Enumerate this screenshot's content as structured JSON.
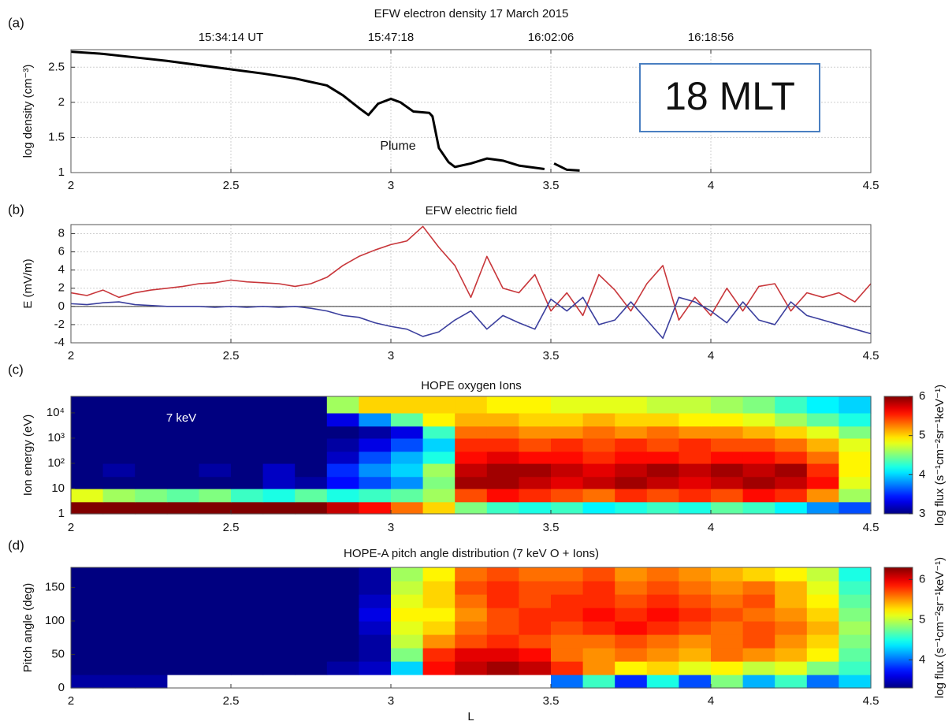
{
  "chart_data": [
    {
      "type": "line",
      "title": "EFW electron density 17 March 2015",
      "panel_label": "(a)",
      "ylabel": "log density (cm⁻³)",
      "x": [
        2.0,
        2.1,
        2.2,
        2.3,
        2.4,
        2.5,
        2.6,
        2.7,
        2.8,
        2.85,
        2.9,
        2.93,
        2.96,
        3.0,
        3.03,
        3.07,
        3.12,
        3.13,
        3.15,
        3.18,
        3.2,
        3.25,
        3.3,
        3.35,
        3.4,
        3.48,
        3.49,
        3.51,
        3.55,
        3.59
      ],
      "series": [
        {
          "color": "#000000",
          "values": [
            2.72,
            2.69,
            2.64,
            2.59,
            2.53,
            2.47,
            2.41,
            2.34,
            2.24,
            2.1,
            1.92,
            1.82,
            1.98,
            2.05,
            2.0,
            1.87,
            1.85,
            1.8,
            1.35,
            1.15,
            1.08,
            1.13,
            1.2,
            1.17,
            1.1,
            1.05,
            null,
            1.13,
            1.04,
            1.03
          ]
        }
      ],
      "xlim": [
        2,
        4.5
      ],
      "xticks": [
        2,
        2.5,
        3,
        3.5,
        4,
        4.5
      ],
      "x2ticks": [
        {
          "value": 2.5,
          "label": "15:34:14 UT"
        },
        {
          "value": 3,
          "label": "15:47:18"
        },
        {
          "value": 3.5,
          "label": "16:02:06"
        },
        {
          "value": 4,
          "label": "16:18:56"
        }
      ],
      "ylim": [
        1,
        2.75
      ],
      "yticks": [
        1,
        1.5,
        2,
        2.5
      ],
      "grid": true,
      "annotations": [
        "Plume",
        "18 MLT"
      ]
    },
    {
      "type": "line",
      "title": "EFW electric field",
      "panel_label": "(b)",
      "ylabel": "E (mV/m)",
      "x": [
        2.0,
        2.05,
        2.1,
        2.15,
        2.2,
        2.25,
        2.3,
        2.35,
        2.4,
        2.45,
        2.5,
        2.55,
        2.6,
        2.65,
        2.7,
        2.75,
        2.8,
        2.85,
        2.9,
        2.95,
        3.0,
        3.05,
        3.1,
        3.15,
        3.2,
        3.25,
        3.3,
        3.35,
        3.4,
        3.45,
        3.5,
        3.55,
        3.6,
        3.65,
        3.7,
        3.75,
        3.8,
        3.85,
        3.9,
        3.95,
        4.0,
        4.05,
        4.1,
        4.15,
        4.2,
        4.25,
        4.3,
        4.35,
        4.4,
        4.45,
        4.5
      ],
      "series": [
        {
          "color": "#c8363a",
          "values": [
            1.5,
            1.2,
            1.8,
            1.0,
            1.5,
            1.8,
            2.0,
            2.2,
            2.5,
            2.6,
            2.9,
            2.7,
            2.6,
            2.5,
            2.2,
            2.5,
            3.2,
            4.5,
            5.5,
            6.2,
            6.8,
            7.2,
            8.8,
            6.5,
            4.5,
            1.0,
            5.5,
            2.0,
            1.5,
            3.5,
            -0.5,
            1.5,
            -1.0,
            3.5,
            1.8,
            -0.5,
            2.5,
            4.5,
            -1.5,
            1.0,
            -1.0,
            2.0,
            -0.5,
            2.2,
            2.5,
            -0.5,
            1.5,
            1.0,
            1.5,
            0.5,
            2.5
          ]
        },
        {
          "color": "#3b3f9e",
          "values": [
            0.3,
            0.2,
            0.4,
            0.5,
            0.2,
            0.1,
            0.0,
            0.0,
            0.0,
            -0.1,
            0.0,
            -0.1,
            0.0,
            -0.1,
            0.0,
            -0.2,
            -0.5,
            -1.0,
            -1.2,
            -1.8,
            -2.2,
            -2.5,
            -3.3,
            -2.8,
            -1.5,
            -0.5,
            -2.5,
            -1.0,
            -1.8,
            -2.5,
            0.8,
            -0.5,
            1.0,
            -2.0,
            -1.5,
            0.5,
            -1.5,
            -3.5,
            1.0,
            0.5,
            -0.5,
            -1.8,
            0.5,
            -1.5,
            -2.0,
            0.5,
            -1.0,
            -1.5,
            -2.0,
            -2.5,
            -3.0
          ]
        }
      ],
      "xlim": [
        2,
        4.5
      ],
      "xticks": [
        2,
        2.5,
        3,
        3.5,
        4,
        4.5
      ],
      "ylim": [
        -4,
        9
      ],
      "yticks": [
        -4,
        -2,
        0,
        2,
        4,
        6,
        8
      ],
      "grid": true
    },
    {
      "type": "heatmap",
      "title": "HOPE oxygen Ions",
      "panel_label": "(c)",
      "ylabel": "Ion energy (eV)",
      "colorbar_label": "log flux (s⁻¹cm⁻²sr⁻¹keV⁻¹)",
      "colormap": "jet",
      "yscale": "log",
      "x_edges": [
        2.0,
        2.1,
        2.2,
        2.3,
        2.4,
        2.5,
        2.6,
        2.7,
        2.8,
        2.9,
        3.0,
        3.1,
        3.2,
        3.3,
        3.4,
        3.5,
        3.6,
        3.7,
        3.8,
        3.9,
        4.0,
        4.1,
        4.2,
        4.3,
        4.4,
        4.5
      ],
      "y_edges": [
        1,
        3,
        10,
        30,
        100,
        300,
        1000,
        3000,
        10000,
        45000
      ],
      "z": [
        [
          6,
          6,
          6,
          6,
          6,
          6,
          6,
          6,
          5.8,
          5.6,
          5.3,
          5,
          4.5,
          4.3,
          4.2,
          4.3,
          4.1,
          4.2,
          4.3,
          4.2,
          4.4,
          4.3,
          4.1,
          3.8,
          3.6
        ],
        [
          4.8,
          4.6,
          4.5,
          4.4,
          4.5,
          4.3,
          4.2,
          4.4,
          4.2,
          4.3,
          4.4,
          4.6,
          5.4,
          5.6,
          5.5,
          5.4,
          5.3,
          5.5,
          5.4,
          5.5,
          5.4,
          5.6,
          5.5,
          5.2,
          4.6
        ],
        [
          3,
          3,
          3,
          3,
          3,
          3,
          3.2,
          3.1,
          3.4,
          3.6,
          3.8,
          4.5,
          5.9,
          5.9,
          5.8,
          5.7,
          5.8,
          5.9,
          5.8,
          5.7,
          5.8,
          5.9,
          5.8,
          5.6,
          4.8
        ],
        [
          3,
          3.1,
          3,
          3,
          3.1,
          3,
          3.2,
          3,
          3.5,
          3.8,
          4,
          4.6,
          5.8,
          5.9,
          5.9,
          5.8,
          5.7,
          5.8,
          5.9,
          5.8,
          5.9,
          5.8,
          5.9,
          5.5,
          4.9
        ],
        [
          3,
          3,
          3,
          3,
          3,
          3,
          3,
          3,
          3.2,
          3.6,
          3.9,
          4.2,
          5.6,
          5.7,
          5.6,
          5.6,
          5.5,
          5.6,
          5.6,
          5.5,
          5.6,
          5.6,
          5.5,
          5.3,
          4.9
        ],
        [
          3,
          3,
          3,
          3,
          3,
          3,
          3,
          3,
          3.1,
          3.3,
          3.6,
          4,
          5.5,
          5.5,
          5.4,
          5.5,
          5.4,
          5.5,
          5.4,
          5.5,
          5.4,
          5.4,
          5.3,
          5.1,
          4.8
        ],
        [
          3,
          3,
          3,
          3,
          3,
          3,
          3,
          3,
          3,
          3.1,
          3.3,
          4.3,
          5.3,
          5.3,
          5.2,
          5.2,
          5.3,
          5.2,
          5.3,
          5.2,
          5.2,
          5.1,
          5,
          4.8,
          4.5
        ],
        [
          3,
          3,
          3,
          3,
          3,
          3,
          3,
          3,
          3.3,
          3.8,
          4.4,
          4.9,
          5.1,
          5.1,
          5.0,
          5.0,
          5.1,
          5.0,
          5.0,
          4.9,
          4.9,
          4.8,
          4.6,
          4.4,
          4.2
        ],
        [
          3,
          3,
          3,
          3,
          3,
          3,
          3,
          3,
          4.6,
          5.0,
          5.0,
          5.0,
          5.0,
          4.9,
          4.9,
          4.8,
          4.8,
          4.8,
          4.7,
          4.7,
          4.6,
          4.5,
          4.3,
          4.1,
          4.0
        ]
      ],
      "xlim": [
        2,
        4.5
      ],
      "xticks": [
        2,
        2.5,
        3,
        3.5,
        4,
        4.5
      ],
      "ylim": [
        1,
        45000
      ],
      "yticks": [
        1,
        10,
        {
          "value": 100,
          "label": "10²"
        },
        {
          "value": 1000,
          "label": "10³"
        },
        {
          "value": 10000,
          "label": "10⁴"
        }
      ],
      "clim": [
        3,
        6
      ],
      "cticks": [
        3,
        4,
        5,
        6
      ],
      "grid": false,
      "annotations": [
        "7 keV"
      ]
    },
    {
      "type": "heatmap",
      "title": "HOPE-A pitch angle distribution (7 keV O + Ions)",
      "panel_label": "(d)",
      "ylabel": "Pitch angle (deg)",
      "xlabel": "L",
      "colorbar_label": "log flux (s⁻¹cm⁻²sr⁻¹keV⁻¹)",
      "colormap": "jet",
      "x_edges": [
        2.0,
        2.1,
        2.2,
        2.3,
        2.4,
        2.5,
        2.6,
        2.7,
        2.8,
        2.9,
        3.0,
        3.1,
        3.2,
        3.3,
        3.4,
        3.5,
        3.6,
        3.7,
        3.8,
        3.9,
        4.0,
        4.1,
        4.2,
        4.3,
        4.4,
        4.5
      ],
      "y_edges": [
        0,
        20,
        40,
        60,
        80,
        100,
        120,
        140,
        160,
        180
      ],
      "z": [
        [
          3.4,
          3.4,
          3.4,
          null,
          null,
          null,
          null,
          null,
          null,
          null,
          null,
          null,
          null,
          null,
          null,
          4.0,
          4.6,
          3.8,
          4.5,
          3.9,
          4.8,
          4.2,
          4.6,
          4.0,
          4.3
        ],
        [
          3.3,
          3.3,
          3.3,
          3.3,
          3.3,
          3.3,
          3.3,
          3.3,
          3.4,
          3.5,
          4.3,
          5.9,
          6.1,
          6.2,
          6.1,
          5.8,
          5.5,
          5.2,
          5.3,
          5.1,
          5.2,
          5.0,
          5.1,
          4.8,
          4.6
        ],
        [
          3.3,
          3.3,
          3.3,
          3.3,
          3.3,
          3.3,
          3.3,
          3.3,
          3.3,
          3.4,
          4.8,
          5.8,
          6.0,
          6.0,
          5.9,
          5.6,
          5.5,
          5.6,
          5.5,
          5.4,
          5.6,
          5.5,
          5.4,
          5.2,
          4.7
        ],
        [
          3.3,
          3.3,
          3.3,
          3.3,
          3.3,
          3.3,
          3.3,
          3.3,
          3.3,
          3.4,
          5.0,
          5.5,
          5.7,
          5.8,
          5.7,
          5.6,
          5.6,
          5.7,
          5.6,
          5.5,
          5.6,
          5.7,
          5.5,
          5.3,
          4.8
        ],
        [
          3.3,
          3.3,
          3.3,
          3.3,
          3.3,
          3.3,
          3.3,
          3.3,
          3.3,
          3.5,
          5.1,
          5.3,
          5.6,
          5.7,
          5.8,
          5.7,
          5.8,
          5.9,
          5.8,
          5.7,
          5.6,
          5.7,
          5.6,
          5.4,
          4.9
        ],
        [
          3.3,
          3.3,
          3.3,
          3.3,
          3.3,
          3.3,
          3.3,
          3.3,
          3.3,
          3.6,
          5.2,
          5.2,
          5.5,
          5.7,
          5.8,
          5.8,
          5.9,
          5.8,
          5.9,
          5.8,
          5.7,
          5.6,
          5.5,
          5.3,
          4.8
        ],
        [
          3.3,
          3.3,
          3.3,
          3.3,
          3.3,
          3.3,
          3.3,
          3.3,
          3.3,
          3.5,
          5.1,
          5.3,
          5.6,
          5.8,
          5.7,
          5.8,
          5.8,
          5.7,
          5.8,
          5.7,
          5.6,
          5.7,
          5.4,
          5.2,
          4.7
        ],
        [
          3.3,
          3.3,
          3.3,
          3.3,
          3.3,
          3.3,
          3.3,
          3.3,
          3.3,
          3.4,
          5.0,
          5.3,
          5.7,
          5.8,
          5.7,
          5.7,
          5.8,
          5.6,
          5.7,
          5.6,
          5.5,
          5.6,
          5.4,
          5.1,
          4.6
        ],
        [
          3.3,
          3.3,
          3.3,
          3.3,
          3.3,
          3.3,
          3.3,
          3.3,
          3.3,
          3.4,
          4.9,
          5.2,
          5.6,
          5.7,
          5.6,
          5.6,
          5.7,
          5.5,
          5.6,
          5.5,
          5.4,
          5.3,
          5.2,
          5.0,
          4.5
        ]
      ],
      "xlim": [
        2,
        4.5
      ],
      "xticks": [
        2,
        2.5,
        3,
        3.5,
        4,
        4.5
      ],
      "ylim": [
        0,
        180
      ],
      "yticks": [
        0,
        50,
        100,
        150
      ],
      "clim": [
        3.3,
        6.3
      ],
      "cticks": [
        4,
        5,
        6
      ],
      "grid": false
    }
  ]
}
